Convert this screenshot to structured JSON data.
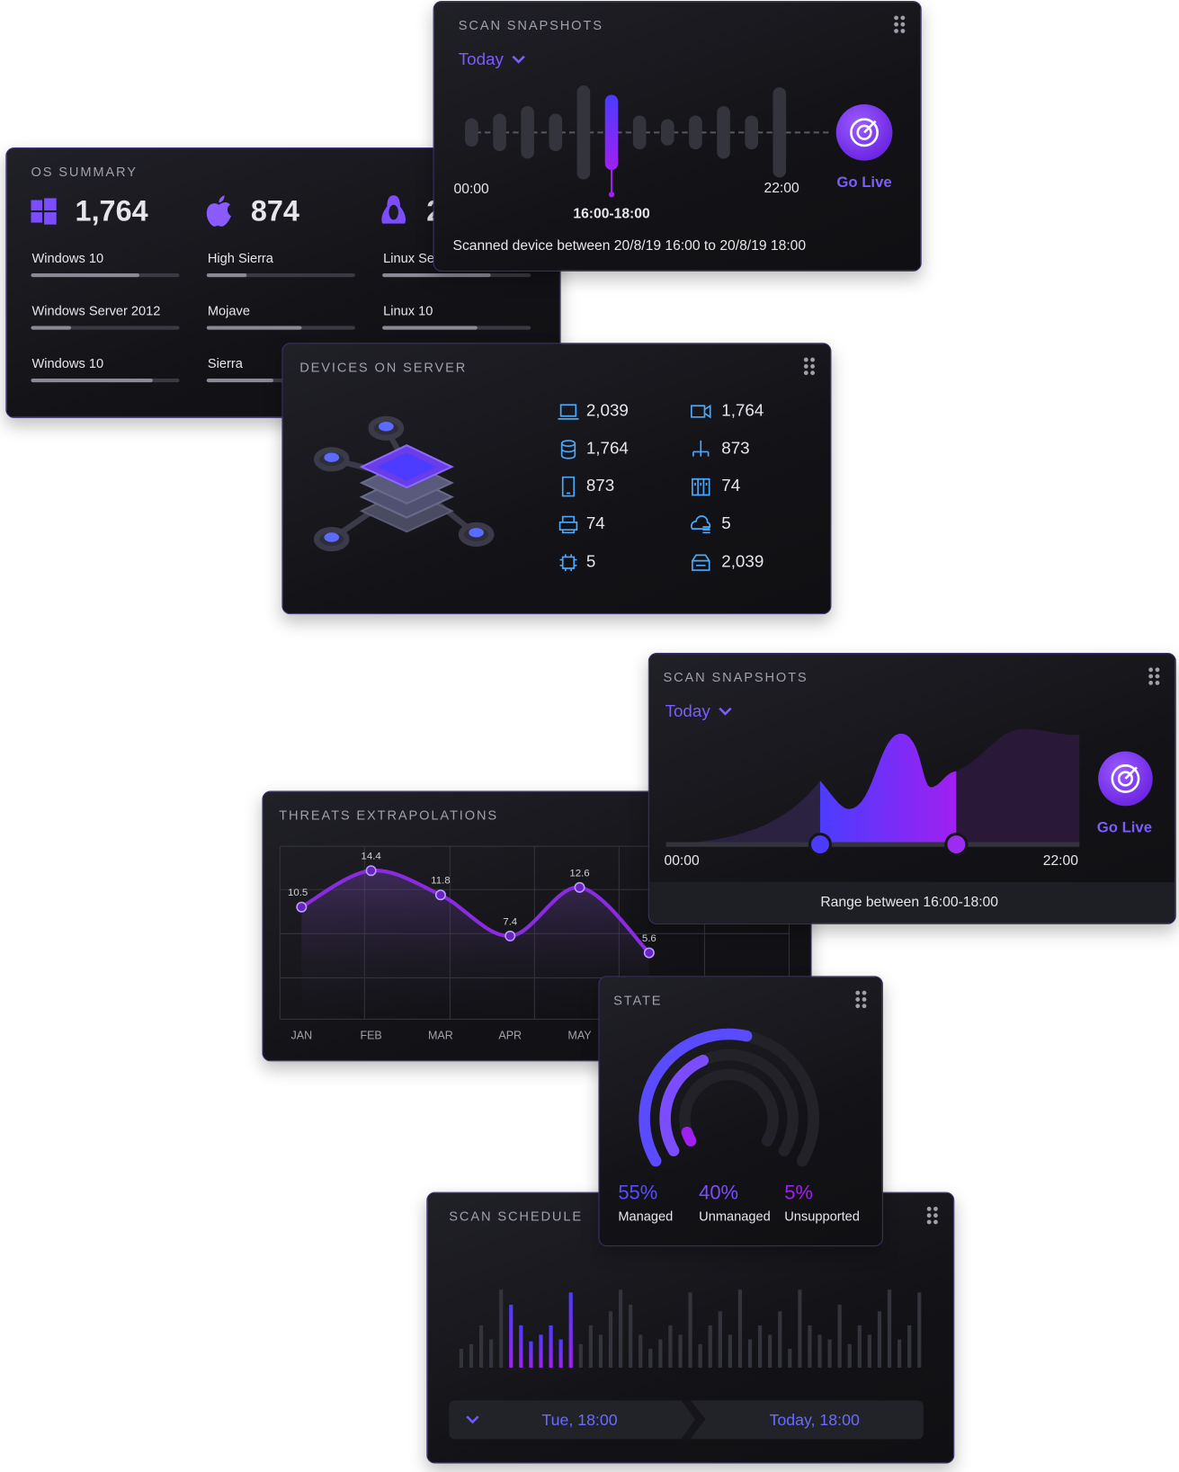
{
  "os_summary": {
    "title": "OS SUMMARY",
    "columns": [
      {
        "count": "1,764",
        "items": [
          {
            "name": "Windows 10",
            "progress": 73
          },
          {
            "name": "Windows Server 2012",
            "progress": 27
          },
          {
            "name": "Windows 10",
            "progress": 82
          }
        ]
      },
      {
        "count": "874",
        "items": [
          {
            "name": "High Sierra",
            "progress": 27
          },
          {
            "name": "Mojave",
            "progress": 64
          },
          {
            "name": "Sierra",
            "progress": 45
          }
        ]
      },
      {
        "count": "2",
        "items": [
          {
            "name": "Linux Ser",
            "progress": 73
          },
          {
            "name": "Linux 10",
            "progress": 64
          }
        ]
      }
    ]
  },
  "scan_snapshots": {
    "title": "SCAN SNAPSHOTS",
    "range_select": "Today",
    "bars": [
      30,
      40,
      56,
      40,
      100,
      80,
      36,
      28,
      36,
      56,
      36,
      96
    ],
    "selected_bar": 5,
    "start_label": "00:00",
    "end_label": "22:00",
    "selected_label": "16:00-18:00",
    "action": "Go Live",
    "footer": "Scanned device between 20/8/19 16:00 to 20/8/19 18:00"
  },
  "devices_on_server": {
    "title": "DEVICES ON SERVER",
    "items": [
      {
        "count": "2,039"
      },
      {
        "count": "1,764"
      },
      {
        "count": "873"
      },
      {
        "count": "74"
      },
      {
        "count": "5"
      },
      {
        "count": "1,764"
      },
      {
        "count": "873"
      },
      {
        "count": "74"
      },
      {
        "count": "5"
      },
      {
        "count": "2,039"
      }
    ]
  },
  "scan_range": {
    "title": "SCAN SNAPSHOTS",
    "range_select": "Today",
    "start_label": "00:00",
    "end_label": "22:00",
    "action": "Go Live",
    "footer": "Range between 16:00-18:00"
  },
  "chart_data": [
    {
      "type": "line",
      "title": "THREATS EXTRAPOLATIONS",
      "categories": [
        "JAN",
        "FEB",
        "MAR",
        "APR",
        "MAY",
        null
      ],
      "values": [
        10.5,
        14.4,
        11.8,
        7.4,
        12.6,
        5.6
      ],
      "ylim": [
        -1.5,
        17
      ],
      "color": "#8a2be2",
      "grid": true
    },
    {
      "type": "radial",
      "title": "STATE",
      "categories": [
        "Managed",
        "Unmanaged",
        "Unsupported"
      ],
      "values": [
        55,
        40,
        5
      ],
      "value_labels": [
        "55%",
        "40%",
        "5%"
      ],
      "colors": [
        "#5b4bff",
        "#7c4dff",
        "#a020f0"
      ]
    }
  ],
  "scan_schedule": {
    "title": "SCAN SCHEDULE",
    "bars": [
      20,
      25,
      45,
      30,
      83,
      67,
      45,
      28,
      35,
      45,
      30,
      80,
      25,
      45,
      35,
      60,
      83,
      67,
      35,
      20,
      30,
      45,
      35,
      80,
      25,
      45,
      60,
      35,
      83,
      30,
      45,
      35,
      60,
      20,
      83,
      45,
      35,
      30,
      67,
      25,
      45,
      35,
      60,
      83,
      30,
      45,
      80
    ],
    "selected": {
      "first": 5,
      "last": 11
    },
    "from": "Tue, 18:00",
    "to": "Today, 18:00"
  }
}
